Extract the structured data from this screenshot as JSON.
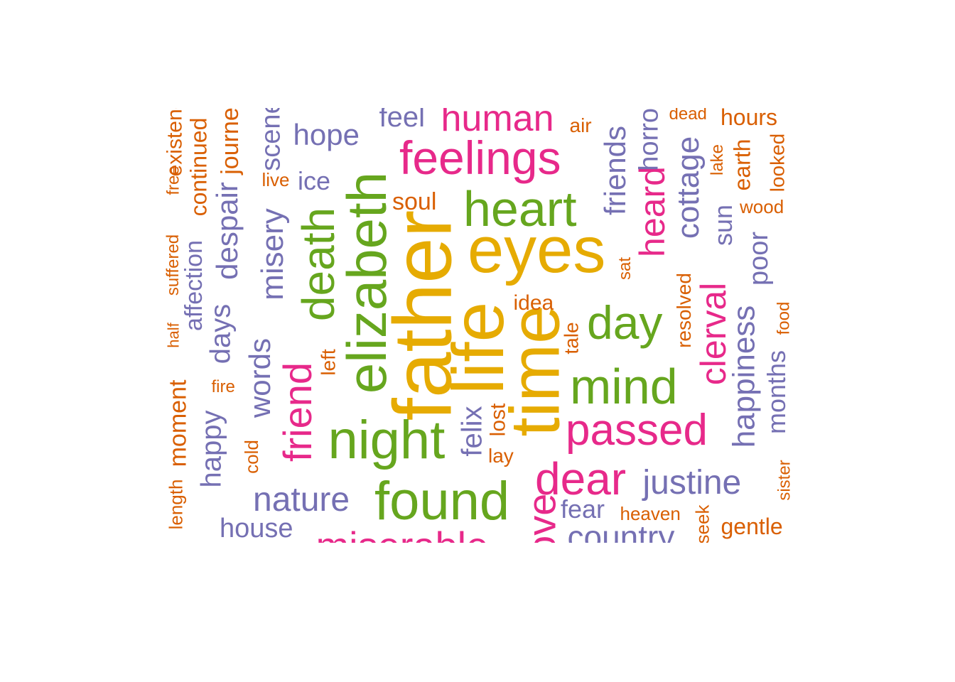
{
  "chart_data": {
    "type": "wordcloud",
    "title": "",
    "palette": [
      "#d95f02",
      "#7570b3",
      "#e7298a",
      "#66a61e",
      "#e6ab02"
    ],
    "words": [
      {
        "text": "father",
        "freq": 100,
        "c": 4,
        "r": 1
      },
      {
        "text": "life",
        "freq": 92,
        "c": 4,
        "r": 1
      },
      {
        "text": "time",
        "freq": 86,
        "c": 4,
        "r": 1
      },
      {
        "text": "eyes",
        "freq": 84,
        "c": 4,
        "r": 0
      },
      {
        "text": "elizabeth",
        "freq": 78,
        "c": 3,
        "r": 1
      },
      {
        "text": "night",
        "freq": 72,
        "c": 3,
        "r": 0
      },
      {
        "text": "found",
        "freq": 72,
        "c": 3,
        "r": 0
      },
      {
        "text": "mind",
        "freq": 66,
        "c": 3,
        "r": 0
      },
      {
        "text": "heart",
        "freq": 64,
        "c": 3,
        "r": 0
      },
      {
        "text": "day",
        "freq": 63,
        "c": 3,
        "r": 0
      },
      {
        "text": "death",
        "freq": 63,
        "c": 3,
        "r": 1
      },
      {
        "text": "feelings",
        "freq": 62,
        "c": 2,
        "r": 0
      },
      {
        "text": "dear",
        "freq": 60,
        "c": 2,
        "r": 0
      },
      {
        "text": "passed",
        "freq": 56,
        "c": 2,
        "r": 0
      },
      {
        "text": "friend",
        "freq": 55,
        "c": 2,
        "r": 1
      },
      {
        "text": "miserable",
        "freq": 55,
        "c": 2,
        "r": 0
      },
      {
        "text": "love",
        "freq": 54,
        "c": 2,
        "r": 1
      },
      {
        "text": "human",
        "freq": 52,
        "c": 2,
        "r": 0
      },
      {
        "text": "heard",
        "freq": 50,
        "c": 2,
        "r": 1
      },
      {
        "text": "clerval",
        "freq": 48,
        "c": 2,
        "r": 1
      },
      {
        "text": "justine",
        "freq": 45,
        "c": 1,
        "r": 0
      },
      {
        "text": "nature",
        "freq": 45,
        "c": 1,
        "r": 0
      },
      {
        "text": "country",
        "freq": 45,
        "c": 1,
        "r": 0
      },
      {
        "text": "cottage",
        "freq": 44,
        "c": 1,
        "r": 1
      },
      {
        "text": "misery",
        "freq": 43,
        "c": 1,
        "r": 1
      },
      {
        "text": "happiness",
        "freq": 43,
        "c": 1,
        "r": 1
      },
      {
        "text": "friends",
        "freq": 42,
        "c": 1,
        "r": 1
      },
      {
        "text": "hope",
        "freq": 41,
        "c": 1,
        "r": 0
      },
      {
        "text": "words",
        "freq": 41,
        "c": 1,
        "r": 1
      },
      {
        "text": "despair",
        "freq": 41,
        "c": 1,
        "r": 1
      },
      {
        "text": "feel",
        "freq": 40,
        "c": 1,
        "r": 0
      },
      {
        "text": "felix",
        "freq": 40,
        "c": 1,
        "r": 1
      },
      {
        "text": "days",
        "freq": 40,
        "c": 1,
        "r": 1
      },
      {
        "text": "happy",
        "freq": 39,
        "c": 1,
        "r": 1
      },
      {
        "text": "house",
        "freq": 38,
        "c": 1,
        "r": 0
      },
      {
        "text": "horror",
        "freq": 38,
        "c": 1,
        "r": 1
      },
      {
        "text": "scene",
        "freq": 38,
        "c": 1,
        "r": 1
      },
      {
        "text": "poor",
        "freq": 38,
        "c": 1,
        "r": 1
      },
      {
        "text": "months",
        "freq": 37,
        "c": 1,
        "r": 1
      },
      {
        "text": "fear",
        "freq": 36,
        "c": 1,
        "r": 0
      },
      {
        "text": "sun",
        "freq": 36,
        "c": 1,
        "r": 1
      },
      {
        "text": "ice",
        "freq": 36,
        "c": 1,
        "r": 0
      },
      {
        "text": "affection",
        "freq": 35,
        "c": 1,
        "r": 1
      },
      {
        "text": "journey",
        "freq": 35,
        "c": 0,
        "r": 1
      },
      {
        "text": "moment",
        "freq": 35,
        "c": 0,
        "r": 1
      },
      {
        "text": "continued",
        "freq": 34,
        "c": 0,
        "r": 1
      },
      {
        "text": "gentle",
        "freq": 34,
        "c": 0,
        "r": 0
      },
      {
        "text": "hours",
        "freq": 34,
        "c": 0,
        "r": 0
      },
      {
        "text": "soul",
        "freq": 34,
        "c": 0,
        "r": 0
      },
      {
        "text": "earth",
        "freq": 33,
        "c": 0,
        "r": 1
      },
      {
        "text": "idea",
        "freq": 33,
        "c": 0,
        "r": 0
      },
      {
        "text": "lost",
        "freq": 32,
        "c": 0,
        "r": 1
      },
      {
        "text": "looked",
        "freq": 32,
        "c": 0,
        "r": 1
      },
      {
        "text": "resolved",
        "freq": 32,
        "c": 0,
        "r": 1
      },
      {
        "text": "existence",
        "freq": 31,
        "c": 0,
        "r": 1
      },
      {
        "text": "air",
        "freq": 31,
        "c": 0,
        "r": 0
      },
      {
        "text": "tale",
        "freq": 31,
        "c": 0,
        "r": 1
      },
      {
        "text": "left",
        "freq": 31,
        "c": 0,
        "r": 1
      },
      {
        "text": "lay",
        "freq": 31,
        "c": 0,
        "r": 0
      },
      {
        "text": "wood",
        "freq": 30,
        "c": 0,
        "r": 0
      },
      {
        "text": "live",
        "freq": 30,
        "c": 0,
        "r": 0
      },
      {
        "text": "heaven",
        "freq": 30,
        "c": 0,
        "r": 0
      },
      {
        "text": "seek",
        "freq": 30,
        "c": 0,
        "r": 1
      },
      {
        "text": "cold",
        "freq": 30,
        "c": 0,
        "r": 1
      },
      {
        "text": "fire",
        "freq": 30,
        "c": 0,
        "r": 0
      },
      {
        "text": "length",
        "freq": 30,
        "c": 0,
        "r": 1
      },
      {
        "text": "lake",
        "freq": 30,
        "c": 0,
        "r": 1
      },
      {
        "text": "sat",
        "freq": 30,
        "c": 0,
        "r": 1
      },
      {
        "text": "sister",
        "freq": 29,
        "c": 0,
        "r": 1
      },
      {
        "text": "food",
        "freq": 29,
        "c": 0,
        "r": 1
      },
      {
        "text": "free",
        "freq": 29,
        "c": 0,
        "r": 1
      },
      {
        "text": "suffered",
        "freq": 29,
        "c": 0,
        "r": 1
      },
      {
        "text": "half",
        "freq": 29,
        "c": 0,
        "r": 1
      },
      {
        "text": "dead",
        "freq": 29,
        "c": 0,
        "r": 0
      }
    ]
  }
}
